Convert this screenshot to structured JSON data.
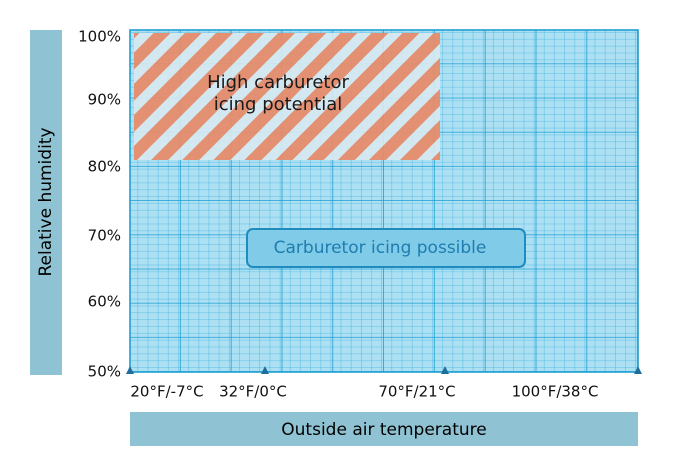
{
  "y_axis": {
    "label": "Relative humidity",
    "ticks": [
      "100%",
      "90%",
      "80%",
      "70%",
      "60%",
      "50%"
    ]
  },
  "x_axis": {
    "label": "Outside air temperature",
    "ticks": [
      "20°F/-7°C",
      "32°F/0°C",
      "70°F/21°C",
      "100°F/38°C"
    ]
  },
  "regions": [
    {
      "label_lines": [
        "High carburetor",
        "icing potential"
      ]
    },
    {
      "label": "Carburetor icing possible"
    }
  ]
}
